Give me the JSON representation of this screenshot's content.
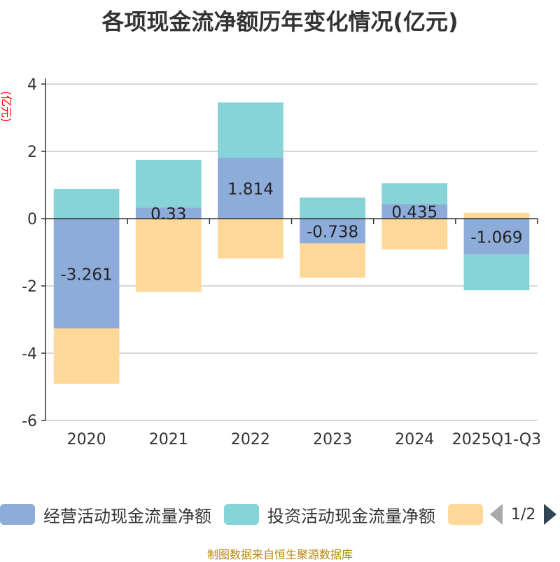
{
  "chart_data": {
    "type": "bar",
    "stacked": true,
    "title": "各项现金流净额历年变化情况(亿元)",
    "ylabel": "(亿元)",
    "xlabel": "",
    "ylim": [
      -6,
      4
    ],
    "yticks": [
      -6,
      -4,
      -2,
      0,
      2,
      4
    ],
    "categories": [
      "2020",
      "2021",
      "2022",
      "2023",
      "2024",
      "2025Q1-Q3"
    ],
    "series": [
      {
        "name": "经营活动现金流量净额",
        "color": "#8eacd9",
        "values": [
          -3.261,
          0.33,
          1.814,
          -0.738,
          0.435,
          -1.069
        ],
        "labels": [
          "-3.261",
          "0.33",
          "1.814",
          "-0.738",
          "0.435",
          "-1.069"
        ]
      },
      {
        "name": "投资活动现金流量净额",
        "color": "#86d4d8",
        "values": [
          0.88,
          1.42,
          1.64,
          0.63,
          0.62,
          -1.06
        ]
      },
      {
        "name": "",
        "color": "#fdd898",
        "values": [
          -1.65,
          -2.18,
          -1.18,
          -1.02,
          -0.92,
          0.17
        ]
      }
    ],
    "legend_position": "bottom"
  },
  "legend": {
    "page_text": "1/2"
  },
  "footer": "制图数据来自恒生聚源数据库"
}
